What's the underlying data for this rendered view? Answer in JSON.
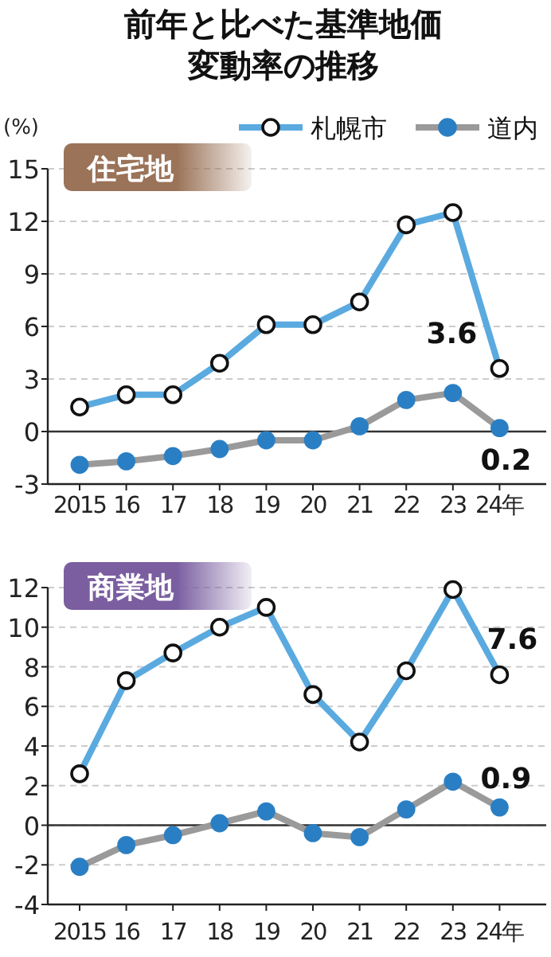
{
  "chart_data": [
    {
      "type": "line",
      "title": "前年と比べた基準地価変動率の推移",
      "subtitle": "住宅地",
      "ylabel": "(%)",
      "legend": "top right",
      "grid": "y",
      "marker": "circle",
      "line_style": "solid",
      "categories": [
        "2015",
        "16",
        "17",
        "18",
        "19",
        "20",
        "21",
        "22",
        "23",
        "24年"
      ],
      "ylim": [
        -3,
        15
      ],
      "yticks": [
        -3,
        0,
        3,
        6,
        9,
        12,
        15
      ],
      "ref_lines": [
        {
          "axis": "y",
          "value": 0,
          "color": "#333333"
        }
      ],
      "series": [
        {
          "name": "札幌市",
          "color": "#5aaae0",
          "values": [
            1.4,
            2.1,
            2.1,
            3.9,
            6.1,
            6.1,
            7.4,
            11.8,
            12.5,
            3.6
          ],
          "value_labels": [
            null,
            null,
            null,
            null,
            null,
            null,
            null,
            null,
            null,
            "3.6"
          ]
        },
        {
          "name": "道内",
          "color": "#9a9a9a",
          "values": [
            -1.9,
            -1.7,
            -1.4,
            -1.0,
            -0.5,
            -0.5,
            0.3,
            1.8,
            2.2,
            0.2
          ],
          "value_labels": [
            null,
            null,
            null,
            null,
            null,
            null,
            null,
            null,
            null,
            "0.2"
          ]
        }
      ]
    },
    {
      "type": "line",
      "subtitle": "商業地",
      "grid": "y",
      "marker": "circle",
      "line_style": "solid",
      "categories": [
        "2015",
        "16",
        "17",
        "18",
        "19",
        "20",
        "21",
        "22",
        "23",
        "24年"
      ],
      "ylim": [
        -4,
        12
      ],
      "yticks": [
        -4,
        -2,
        0,
        2,
        4,
        6,
        8,
        10,
        12
      ],
      "ref_lines": [
        {
          "axis": "y",
          "value": 0,
          "color": "#333333"
        }
      ],
      "series": [
        {
          "color": "#5aaae0",
          "values": [
            2.6,
            7.3,
            8.7,
            10.0,
            11.0,
            6.6,
            4.2,
            7.8,
            11.9,
            7.6
          ],
          "value_labels": [
            null,
            null,
            null,
            null,
            null,
            null,
            null,
            null,
            null,
            "7.6"
          ]
        },
        {
          "color": "#9a9a9a",
          "values": [
            -2.1,
            -1.0,
            -0.5,
            0.1,
            0.7,
            -0.4,
            -0.6,
            0.8,
            2.2,
            0.9
          ],
          "value_labels": [
            null,
            null,
            null,
            null,
            null,
            null,
            null,
            null,
            null,
            "0.9"
          ]
        }
      ]
    }
  ]
}
